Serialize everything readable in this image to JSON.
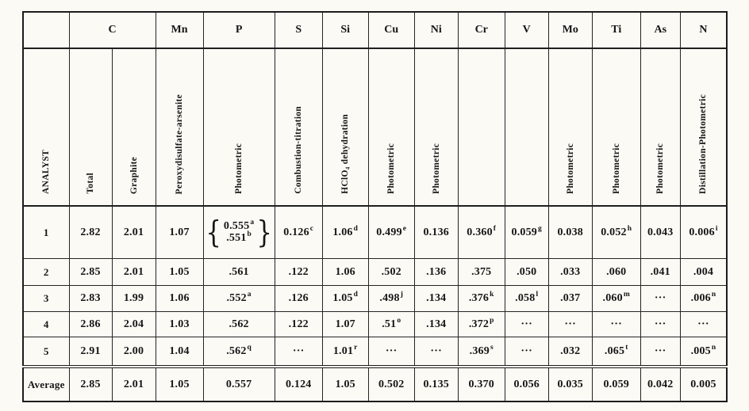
{
  "colors": {
    "ink": "#1c1c1c",
    "paper": "#fbfaf5"
  },
  "table": {
    "header_groups": [
      {
        "label": "",
        "span": 1
      },
      {
        "label": "C",
        "span": 2
      },
      {
        "label": "Mn",
        "span": 1
      },
      {
        "label": "P",
        "span": 1
      },
      {
        "label": "S",
        "span": 1
      },
      {
        "label": "Si",
        "span": 1
      },
      {
        "label": "Cu",
        "span": 1
      },
      {
        "label": "Ni",
        "span": 1
      },
      {
        "label": "Cr",
        "span": 1
      },
      {
        "label": "V",
        "span": 1
      },
      {
        "label": "Mo",
        "span": 1
      },
      {
        "label": "Ti",
        "span": 1
      },
      {
        "label": "As",
        "span": 1
      },
      {
        "label": "N",
        "span": 1
      }
    ],
    "column_keys": [
      "analyst",
      "c-total",
      "c-graphite",
      "mn",
      "p",
      "s",
      "si",
      "cu",
      "ni",
      "cr",
      "v",
      "mo",
      "ti",
      "as",
      "n"
    ],
    "methods": [
      "ANALYST",
      "Total",
      "Graphite",
      "Peroxydisulfate-arsenite",
      "Photometric",
      "Combustion-titration",
      "HClO₄ dehydration",
      "Photometric",
      "Photometric",
      "",
      "",
      "Photometric",
      "Photometric",
      "Photometric",
      "Distillation-Photometric"
    ],
    "rows": [
      {
        "name": "row-1",
        "cells": [
          "1",
          "2.82",
          "2.01",
          "1.07",
          {
            "type": "brace",
            "top": "0.555^a",
            "bottom": ".551^b"
          },
          "0.126^c",
          "1.06^d",
          "0.499^e",
          "0.136",
          "0.360^f",
          "0.059^g",
          "0.038",
          "0.052^h",
          "0.043",
          "0.006^i"
        ]
      },
      {
        "name": "row-2",
        "cells": [
          "2",
          "2.85",
          "2.01",
          "1.05",
          ".561",
          ".122",
          "1.06",
          ".502",
          ".136",
          ".375",
          ".050",
          ".033",
          ".060",
          ".041",
          ".004"
        ]
      },
      {
        "name": "row-3",
        "cells": [
          "3",
          "2.83",
          "1.99",
          "1.06",
          ".552^a",
          ".126",
          "1.05^d",
          ".498^j",
          ".134",
          ".376^k",
          ".058^l",
          ".037",
          ".060^m",
          "···",
          ".006^n"
        ]
      },
      {
        "name": "row-4",
        "cells": [
          "4",
          "2.86",
          "2.04",
          "1.03",
          ".562",
          ".122",
          "1.07",
          ".51^o",
          ".134",
          ".372^p",
          "···",
          "···",
          "···",
          "···",
          "···"
        ]
      },
      {
        "name": "row-5",
        "cells": [
          "5",
          "2.91",
          "2.00",
          "1.04",
          ".562^q",
          "···",
          "1.01^r",
          "···",
          "···",
          ".369^s",
          "···",
          ".032",
          ".065^t",
          "···",
          ".005^n"
        ]
      },
      {
        "name": "row-average",
        "cells": [
          "Average",
          "2.85",
          "2.01",
          "1.05",
          "0.557",
          "0.124",
          "1.05",
          "0.502",
          "0.135",
          "0.370",
          "0.056",
          "0.035",
          "0.059",
          "0.042",
          "0.005"
        ]
      }
    ]
  }
}
